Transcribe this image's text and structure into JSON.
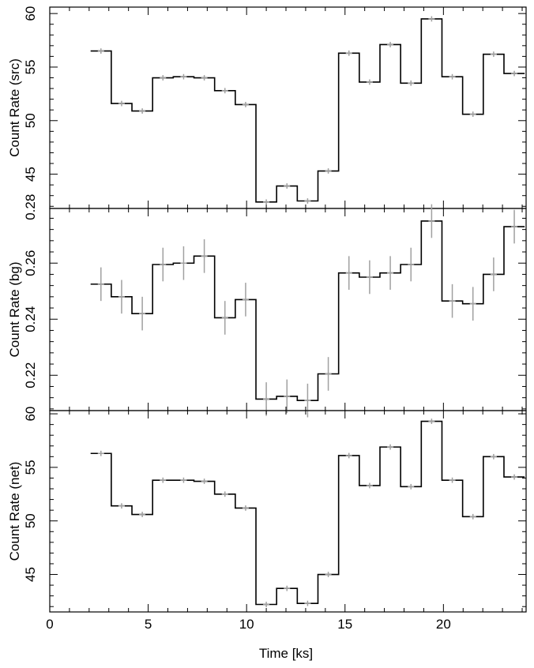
{
  "chart_data": {
    "type": "line",
    "step": true,
    "xlabel": "Time [ks]",
    "xlim": [
      0,
      24.2
    ],
    "xticks": [
      0,
      5,
      10,
      15,
      20
    ],
    "x": [
      2.6,
      3.65,
      4.7,
      5.75,
      6.8,
      7.85,
      8.9,
      9.95,
      11.0,
      12.05,
      13.1,
      14.15,
      15.2,
      16.25,
      17.3,
      18.35,
      19.4,
      20.45,
      21.5,
      22.55,
      23.6
    ],
    "half_width": 0.525,
    "panels": [
      {
        "ylabel": "Count Rate (src)",
        "ylim": [
          41.8,
          60.6
        ],
        "yticks": [
          45,
          50,
          55,
          60
        ],
        "series": [
          {
            "values": [
              56.5,
              51.6,
              50.9,
              54.0,
              54.1,
              54.0,
              52.8,
              51.5,
              42.4,
              43.9,
              42.5,
              45.3,
              56.3,
              53.6,
              57.1,
              53.5,
              59.5,
              54.1,
              50.6,
              56.2,
              54.4
            ],
            "errors": [
              0.25,
              0.25,
              0.25,
              0.25,
              0.25,
              0.25,
              0.25,
              0.25,
              0.25,
              0.25,
              0.25,
              0.25,
              0.25,
              0.25,
              0.25,
              0.25,
              0.25,
              0.25,
              0.25,
              0.25,
              0.25
            ]
          }
        ]
      },
      {
        "ylabel": "Count Rate (bg)",
        "ylim": [
          0.2074,
          0.2795
        ],
        "yticks": [
          0.22,
          0.24,
          0.26,
          0.28
        ],
        "series": [
          {
            "values": [
              0.2525,
              0.248,
              0.242,
              0.2595,
              0.26,
              0.2625,
              0.2405,
              0.247,
              0.2115,
              0.2125,
              0.211,
              0.2205,
              0.2565,
              0.255,
              0.2565,
              0.2595,
              0.275,
              0.2465,
              0.2455,
              0.256,
              0.273
            ],
            "errors": [
              0.006,
              0.006,
              0.006,
              0.006,
              0.006,
              0.006,
              0.006,
              0.006,
              0.006,
              0.006,
              0.006,
              0.006,
              0.006,
              0.006,
              0.006,
              0.006,
              0.006,
              0.006,
              0.006,
              0.006,
              0.006
            ]
          }
        ]
      },
      {
        "ylabel": "Count Rate (net)",
        "ylim": [
          41.5,
          60.3
        ],
        "yticks": [
          45,
          50,
          55,
          60
        ],
        "series": [
          {
            "values": [
              56.3,
              51.4,
              50.6,
              53.8,
              53.8,
              53.7,
              52.5,
              51.2,
              42.2,
              43.7,
              42.3,
              45.0,
              56.1,
              53.3,
              56.9,
              53.2,
              59.3,
              53.8,
              50.4,
              56.0,
              54.1
            ],
            "errors": [
              0.25,
              0.25,
              0.25,
              0.25,
              0.25,
              0.25,
              0.25,
              0.25,
              0.25,
              0.25,
              0.25,
              0.25,
              0.25,
              0.25,
              0.25,
              0.25,
              0.25,
              0.25,
              0.25,
              0.25,
              0.25
            ]
          }
        ]
      }
    ]
  }
}
